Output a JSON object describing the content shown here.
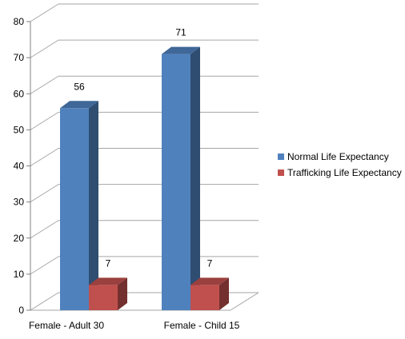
{
  "chart_data": {
    "type": "bar",
    "categories": [
      "Female - Adult 30",
      "Female - Child 15"
    ],
    "series": [
      {
        "name": "Normal Life Expectancy",
        "values": [
          56,
          71
        ],
        "color": "#4F81BD"
      },
      {
        "name": "Trafficking Life Expectancy",
        "values": [
          7,
          7
        ],
        "color": "#C0504D"
      }
    ],
    "data_labels": [
      [
        "56",
        "71"
      ],
      [
        "7",
        "7"
      ]
    ],
    "y_ticks": [
      0,
      10,
      20,
      30,
      40,
      50,
      60,
      70,
      80
    ],
    "ylim": [
      0,
      80
    ],
    "grid": true,
    "legend_position": "right",
    "three_d": true
  }
}
